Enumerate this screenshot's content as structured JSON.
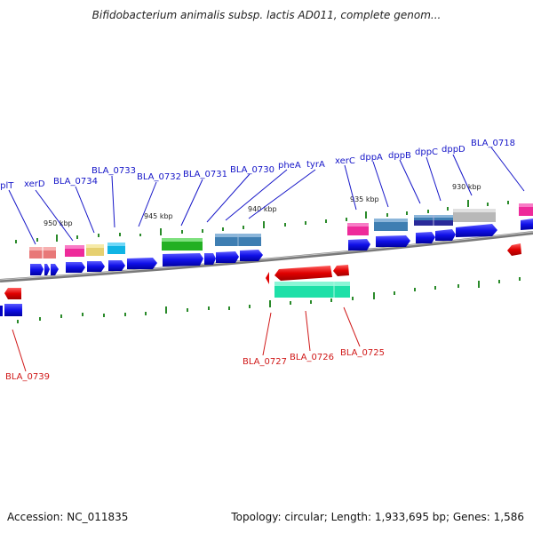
{
  "header": {
    "title": "Bifidobacterium animalis subsp. lactis AD011, complete genom..."
  },
  "footer": {
    "accession": "Accession: NC_011835",
    "stats": "Topology: circular; Length: 1,933,695 bp; Genes: 1,586"
  },
  "scale_labels": [
    "950 kbp",
    "945 kbp",
    "940 kbp",
    "935 kbp",
    "930 kbp"
  ],
  "top_labels": [
    "rplT",
    "xerD",
    "BLA_0734",
    "BLA_0733",
    "BLA_0732",
    "BLA_0731",
    "BLA_0730",
    "pheA",
    "tyrA",
    "xerC",
    "dppA",
    "dppB",
    "dppC",
    "dppD",
    "BLA_0718"
  ],
  "bottom_labels": [
    "BLA_0739",
    "BLA_0727",
    "BLA_0726",
    "BLA_0725"
  ],
  "colors": {
    "backbone": "#7a7a7a",
    "cds": "#1010e8",
    "reverse_gene": "#e00000",
    "forward_label": "#1515c8",
    "reverse_label": "#d01818",
    "tick": "#2a8a2a"
  }
}
